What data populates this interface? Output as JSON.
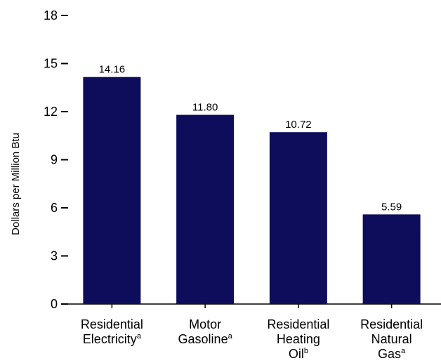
{
  "chart_data": {
    "type": "bar",
    "ylabel": "Dollars per Million Btu",
    "ylim": [
      0,
      18
    ],
    "yticks": [
      0,
      3,
      6,
      9,
      12,
      15,
      18
    ],
    "categories": [
      {
        "lines": [
          "Residential",
          "Electricity"
        ],
        "sup": "a"
      },
      {
        "lines": [
          "Motor",
          "Gasoline"
        ],
        "sup": "a"
      },
      {
        "lines": [
          "Residential",
          "Heating",
          "Oil"
        ],
        "sup": "b"
      },
      {
        "lines": [
          "Residential",
          "Natural",
          "Gas"
        ],
        "sup": "a"
      }
    ],
    "values": [
      14.16,
      11.8,
      10.72,
      5.59
    ],
    "value_labels": [
      "14.16",
      "11.80",
      "10.72",
      "5.59"
    ],
    "bar_color": "#0d0d5c",
    "grid": false,
    "legend": "none"
  }
}
